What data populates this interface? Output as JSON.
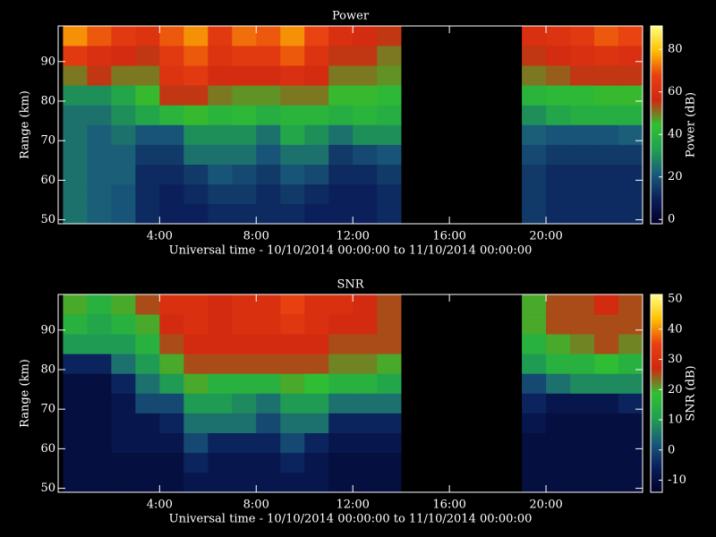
{
  "chart_data": [
    {
      "type": "heatmap",
      "title": "Power",
      "xlabel": "Universal time - 10/10/2014 00:00:00 to 11/10/2014 00:00:00",
      "ylabel": "Range (km)",
      "colorbar_label": "Power (dB)",
      "xlim": [
        -0.2,
        24
      ],
      "xticks": [
        {
          "value": 4,
          "label": "4:00"
        },
        {
          "value": 8,
          "label": "8:00"
        },
        {
          "value": 12,
          "label": "12:00"
        },
        {
          "value": 16,
          "label": "16:00"
        },
        {
          "value": 20,
          "label": "20:00"
        }
      ],
      "ylim": [
        49,
        99
      ],
      "yticks": [
        50,
        60,
        70,
        80,
        90
      ],
      "zlim": [
        -2,
        91
      ],
      "zticks": [
        0,
        20,
        40,
        60,
        80
      ],
      "colormap": [
        "#000028",
        "#0a1e5a",
        "#1a5a7a",
        "#20a050",
        "#30c030",
        "#d02810",
        "#e84010",
        "#ffc000",
        "#ffff80"
      ],
      "x": [
        0.5,
        1.5,
        2.5,
        3.5,
        4.5,
        5.5,
        6.5,
        7.5,
        8.5,
        9.5,
        10.5,
        11.5,
        12.5,
        13.5,
        14.5,
        15.5,
        16.5,
        17.5,
        18.5,
        19.5,
        20.5,
        21.5,
        22.5,
        23.5
      ],
      "y": [
        51.5,
        56.5,
        61.5,
        66.5,
        71.5,
        76.5,
        81.5,
        86.5,
        91.5,
        96.5
      ],
      "values": [
        [
          25,
          22,
          20,
          12,
          10,
          10,
          12,
          12,
          12,
          12,
          10,
          10,
          10,
          12,
          null,
          null,
          null,
          null,
          null,
          15,
          12,
          12,
          12,
          12
        ],
        [
          25,
          22,
          20,
          12,
          10,
          12,
          15,
          15,
          12,
          15,
          12,
          10,
          10,
          12,
          null,
          null,
          null,
          null,
          null,
          15,
          12,
          12,
          12,
          12
        ],
        [
          25,
          22,
          22,
          12,
          12,
          15,
          20,
          18,
          15,
          20,
          18,
          12,
          12,
          15,
          null,
          null,
          null,
          null,
          null,
          15,
          12,
          12,
          12,
          12
        ],
        [
          25,
          22,
          22,
          15,
          15,
          25,
          25,
          25,
          20,
          25,
          25,
          15,
          18,
          20,
          null,
          null,
          null,
          null,
          null,
          18,
          15,
          15,
          15,
          15
        ],
        [
          25,
          22,
          25,
          20,
          20,
          30,
          30,
          30,
          25,
          35,
          30,
          25,
          30,
          30,
          null,
          null,
          null,
          null,
          null,
          22,
          20,
          20,
          20,
          22
        ],
        [
          25,
          25,
          30,
          35,
          40,
          45,
          40,
          42,
          38,
          40,
          40,
          38,
          40,
          38,
          null,
          null,
          null,
          null,
          null,
          30,
          35,
          38,
          38,
          38
        ],
        [
          30,
          30,
          35,
          45,
          55,
          55,
          50,
          48,
          48,
          50,
          50,
          45,
          45,
          42,
          null,
          null,
          null,
          null,
          null,
          40,
          42,
          42,
          45,
          45
        ],
        [
          50,
          55,
          50,
          50,
          62,
          65,
          58,
          58,
          58,
          60,
          58,
          50,
          50,
          48,
          null,
          null,
          null,
          null,
          null,
          50,
          52,
          55,
          55,
          55
        ],
        [
          65,
          60,
          58,
          55,
          65,
          70,
          62,
          65,
          65,
          70,
          62,
          55,
          55,
          50,
          null,
          null,
          null,
          null,
          null,
          55,
          58,
          60,
          62,
          60
        ],
        [
          75,
          70,
          65,
          62,
          70,
          75,
          65,
          72,
          70,
          75,
          68,
          60,
          58,
          55,
          null,
          null,
          null,
          null,
          null,
          60,
          62,
          65,
          70,
          68
        ]
      ]
    },
    {
      "type": "heatmap",
      "title": "SNR",
      "xlabel": "Universal time - 10/10/2014 00:00:00 to 11/10/2014 00:00:00",
      "ylabel": "Range (km)",
      "colorbar_label": "SNR (dB)",
      "xlim": [
        -0.2,
        24
      ],
      "xticks": [
        {
          "value": 4,
          "label": "4:00"
        },
        {
          "value": 8,
          "label": "8:00"
        },
        {
          "value": 12,
          "label": "12:00"
        },
        {
          "value": 16,
          "label": "16:00"
        },
        {
          "value": 20,
          "label": "20:00"
        }
      ],
      "ylim": [
        49,
        99
      ],
      "yticks": [
        50,
        60,
        70,
        80,
        90
      ],
      "zlim": [
        -14,
        51.5
      ],
      "zticks": [
        -10,
        0,
        10,
        20,
        30,
        40,
        50
      ],
      "colormap": [
        "#000028",
        "#0a1e5a",
        "#1a5a7a",
        "#20a050",
        "#30c030",
        "#d02810",
        "#e84010",
        "#ffc000",
        "#ffff80"
      ],
      "x": [
        0.5,
        1.5,
        2.5,
        3.5,
        4.5,
        5.5,
        6.5,
        7.5,
        8.5,
        9.5,
        10.5,
        11.5,
        12.5,
        13.5,
        14.5,
        15.5,
        16.5,
        17.5,
        18.5,
        19.5,
        20.5,
        21.5,
        22.5,
        23.5
      ],
      "y": [
        51.5,
        56.5,
        61.5,
        66.5,
        71.5,
        76.5,
        81.5,
        86.5,
        91.5,
        96.5
      ],
      "values": [
        [
          -10,
          -10,
          -10,
          -10,
          -10,
          -8,
          -8,
          -8,
          -8,
          -8,
          -8,
          -10,
          -10,
          -10,
          null,
          null,
          null,
          null,
          null,
          -10,
          -10,
          -10,
          -10,
          -10
        ],
        [
          -10,
          -10,
          -10,
          -10,
          -10,
          -5,
          -8,
          -8,
          -8,
          -5,
          -8,
          -10,
          -10,
          -10,
          null,
          null,
          null,
          null,
          null,
          -10,
          -10,
          -10,
          -10,
          -10
        ],
        [
          -10,
          -10,
          -8,
          -8,
          -8,
          0,
          -5,
          -5,
          -5,
          0,
          -5,
          -8,
          -8,
          -8,
          null,
          null,
          null,
          null,
          null,
          -10,
          -10,
          -10,
          -10,
          -10
        ],
        [
          -10,
          -10,
          -8,
          -8,
          -5,
          5,
          5,
          5,
          0,
          5,
          5,
          -5,
          -5,
          -5,
          null,
          null,
          null,
          null,
          null,
          -8,
          -10,
          -10,
          -10,
          -10
        ],
        [
          -10,
          -10,
          -8,
          0,
          0,
          10,
          10,
          8,
          5,
          10,
          10,
          5,
          5,
          5,
          null,
          null,
          null,
          null,
          null,
          -5,
          -8,
          -8,
          -8,
          -5
        ],
        [
          -10,
          -10,
          -5,
          5,
          10,
          20,
          15,
          15,
          15,
          20,
          18,
          15,
          15,
          12,
          null,
          null,
          null,
          null,
          null,
          0,
          5,
          8,
          8,
          8
        ],
        [
          -5,
          -5,
          5,
          10,
          20,
          25,
          25,
          25,
          25,
          25,
          25,
          22,
          22,
          20,
          null,
          null,
          null,
          null,
          null,
          10,
          15,
          15,
          18,
          15
        ],
        [
          10,
          10,
          10,
          15,
          25,
          28,
          28,
          28,
          28,
          28,
          28,
          25,
          25,
          25,
          null,
          null,
          null,
          null,
          null,
          15,
          20,
          22,
          25,
          22
        ],
        [
          15,
          12,
          15,
          20,
          28,
          30,
          28,
          30,
          30,
          32,
          30,
          28,
          28,
          25,
          null,
          null,
          null,
          null,
          null,
          20,
          25,
          25,
          25,
          25
        ],
        [
          20,
          15,
          20,
          25,
          30,
          30,
          28,
          30,
          30,
          35,
          30,
          30,
          28,
          25,
          null,
          null,
          null,
          null,
          null,
          20,
          25,
          25,
          28,
          25
        ]
      ]
    }
  ]
}
